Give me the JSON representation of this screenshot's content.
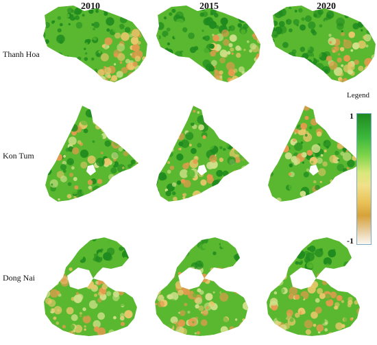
{
  "years": [
    "2010",
    "2015",
    "2020"
  ],
  "regions": [
    "Thanh Hoa",
    "Kon Tum",
    "Dong Nai"
  ],
  "legend": {
    "title": "Legend",
    "max": "1",
    "min": "-1"
  },
  "colors": {
    "high": "#1f8a1f",
    "mid_high": "#59b82f",
    "mid": "#cfe08a",
    "low_mid": "#e8c76a",
    "low": "#e59a4e",
    "void": "#ffffff"
  }
}
